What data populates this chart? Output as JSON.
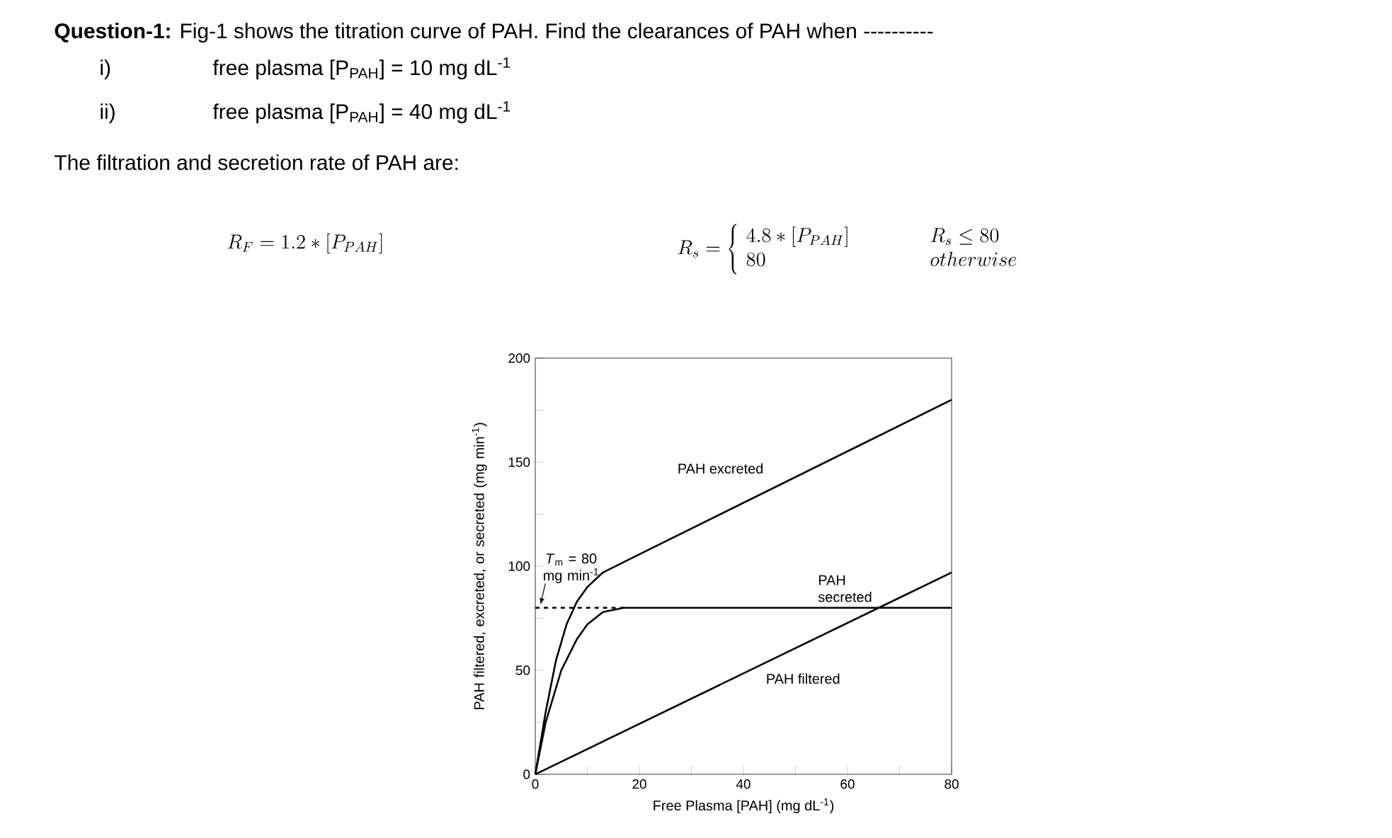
{
  "chart_data": {
    "type": "line",
    "title": "**Question-1:** Fig-1 shows the titration curve of PAH. Find the clearances of PAH when ----------",
    "annotations": [
      "i)",
      "free plasma [P$_{PAH}$] = 10 mg dL$^{-1}$",
      "ii)",
      "free plasma [P$_{PAH}$] = 40 mg dL$^{-1}$",
      "The filtration and secretion rate of PAH are:",
      "R_F = 1.2 * [P_{PAH}]",
      "R_s = \\left\\{ \\begin{array}{l@{\\hspace{2cm}}l} 4.8 * [P_{PAH}] & R_s \\le 80 \\\\ 80 & otherwise \\end{array}\\right."
    ],
    "xlabel": "Free Plasma [PAH] (mg dL$^{-1}$)",
    "ylabel": "PAH filtered, excreted, or secreted (mg min$^{-1}$)",
    "xlim": [
      0,
      80
    ],
    "ylim": [
      0,
      200
    ],
    "xticks": [
      0,
      {
        "value": 10,
        "label": null
      },
      20,
      {
        "value": 30,
        "label": null
      },
      40,
      {
        "value": 50,
        "label": null
      },
      60,
      {
        "value": 70,
        "label": null
      },
      80
    ],
    "yticks": [
      0,
      {
        "value": 25,
        "label": null
      },
      50,
      {
        "value": 75,
        "label": null
      },
      100,
      {
        "value": 125,
        "label": null
      },
      150,
      {
        "value": 175,
        "label": null
      },
      200
    ],
    "grid": false,
    "marker": "none",
    "line_style": "solid",
    "ref_lines": [
      {
        "axis": "y",
        "value": 80,
        "label": "*T*$_{m}$ = 80 mg min$^{-1}$",
        "line_style": "dashed"
      }
    ],
    "series": [
      {
        "name": "PAH excreted",
        "color": "#000000",
        "x": [
          0,
          2,
          4,
          6,
          8,
          10,
          13,
          17,
          80
        ],
        "values": [
          0,
          30,
          55,
          72,
          83,
          90,
          97,
          102,
          180
        ]
      },
      {
        "name": "PAH secreted",
        "color": "#000000",
        "x": [
          0,
          2,
          5,
          8,
          10,
          13,
          17,
          80
        ],
        "values": [
          0,
          25,
          50,
          65,
          72,
          78,
          80,
          80
        ]
      },
      {
        "name": "PAH filtered",
        "color": "#000000",
        "x": [
          0,
          80
        ],
        "values": [
          0,
          97
        ]
      }
    ]
  }
}
